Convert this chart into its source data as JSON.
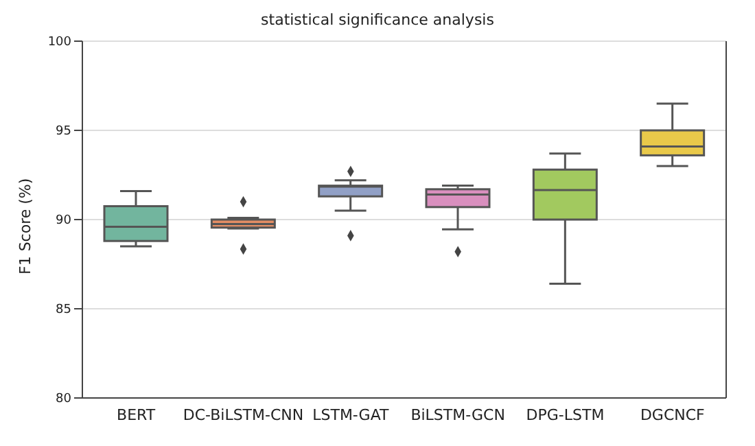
{
  "chart_data": {
    "type": "box",
    "title": "statistical significance analysis",
    "ylabel": "F1 Score (%)",
    "categories": [
      "BERT",
      "DC-BiLSTM-CNN",
      "LSTM-GAT",
      "BiLSTM-GCN",
      "DPG-LSTM",
      "DGCNCF"
    ],
    "colors": [
      "#72b59e",
      "#e38d65",
      "#91a0c6",
      "#d98fbe",
      "#a2c95f",
      "#e9c94a"
    ],
    "boxes": [
      {
        "low": 88.5,
        "q1": 88.8,
        "median": 89.6,
        "q3": 90.75,
        "high": 91.6
      },
      {
        "low": 89.5,
        "q1": 89.55,
        "median": 89.75,
        "q3": 90.0,
        "high": 90.1,
        "outliers": [
          91.0,
          88.35
        ]
      },
      {
        "low": 90.5,
        "q1": 91.3,
        "median": 91.85,
        "q3": 91.9,
        "high": 92.2,
        "outliers": [
          92.7,
          89.1
        ]
      },
      {
        "low": 89.45,
        "q1": 90.7,
        "median": 91.4,
        "q3": 91.7,
        "high": 91.9,
        "outliers": [
          88.2
        ]
      },
      {
        "low": 86.4,
        "q1": 90.0,
        "median": 91.65,
        "q3": 92.8,
        "high": 93.7
      },
      {
        "low": 93.0,
        "q1": 93.6,
        "median": 94.1,
        "q3": 95.0,
        "high": 96.5
      }
    ],
    "ylim": [
      80,
      100
    ],
    "yticks": [
      80,
      85,
      90,
      95,
      100
    ],
    "grid": "y",
    "marker": "diamond"
  }
}
